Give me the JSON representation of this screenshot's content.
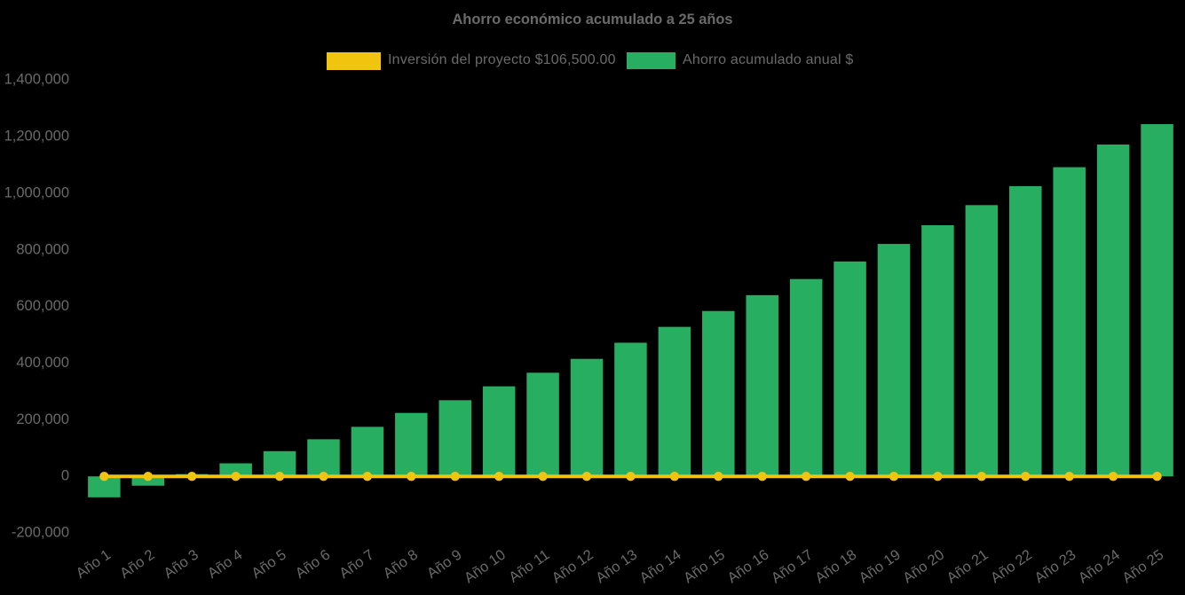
{
  "title": "Ahorro económico acumulado a 25 años",
  "background_color": "#000000",
  "text_color": "#6a6a6a",
  "legend": {
    "position": "top",
    "items": [
      {
        "label": "Inversión del proyecto $106,500.00",
        "color": "#F1C40F"
      },
      {
        "label": "Ahorro acumulado anual $",
        "color": "#27AE60"
      }
    ]
  },
  "chart_data": {
    "type": "bar",
    "subtype": "combo-bar-line",
    "title": "Ahorro económico acumulado a 25 años",
    "xlabel": "",
    "ylabel": "",
    "categories": [
      "Año 1",
      "Año 2",
      "Año 3",
      "Año 4",
      "Año 5",
      "Año 6",
      "Año 7",
      "Año 8",
      "Año 9",
      "Año 10",
      "Año 11",
      "Año 12",
      "Año 13",
      "Año 14",
      "Año 15",
      "Año 16",
      "Año 17",
      "Año 18",
      "Año 19",
      "Año 20",
      "Año 21",
      "Año 22",
      "Año 23",
      "Año 24",
      "Año 25"
    ],
    "series": [
      {
        "name": "Ahorro acumulado anual $",
        "type": "bar",
        "color": "#27AE60",
        "values": [
          -74000,
          -33000,
          8000,
          46000,
          89000,
          131000,
          175000,
          224000,
          269000,
          318000,
          366000,
          415000,
          472000,
          528000,
          584000,
          640000,
          697000,
          759000,
          821000,
          887000,
          958000,
          1025000,
          1092000,
          1172000,
          1244000
        ]
      },
      {
        "name": "Inversión del proyecto $106,500.00",
        "type": "line",
        "color": "#F1C40F",
        "values": [
          0,
          0,
          0,
          0,
          0,
          0,
          0,
          0,
          0,
          0,
          0,
          0,
          0,
          0,
          0,
          0,
          0,
          0,
          0,
          0,
          0,
          0,
          0,
          0,
          0
        ]
      }
    ],
    "ylim": [
      -200000,
      1400000
    ],
    "yticks": [
      -200000,
      0,
      200000,
      400000,
      600000,
      800000,
      1000000,
      1200000,
      1400000
    ],
    "grid": false,
    "legend_position": "top",
    "background": "#000000"
  }
}
